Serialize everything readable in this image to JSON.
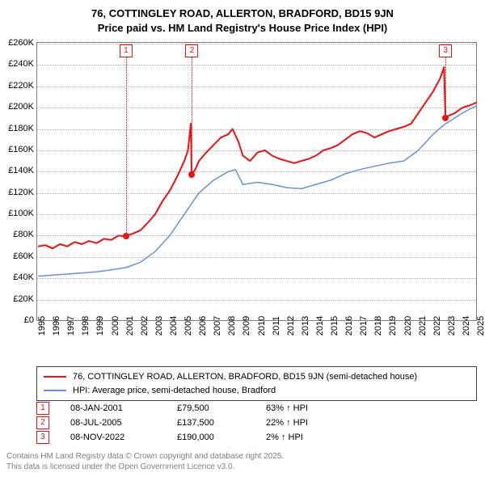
{
  "title_line1": "76, COTTINGLEY ROAD, ALLERTON, BRADFORD, BD15 9JN",
  "title_line2": "Price paid vs. HM Land Registry's House Price Index (HPI)",
  "chart": {
    "type": "line",
    "background_color": "#ffffff",
    "border_color": "#808080",
    "grid_color": "#b0b0b0",
    "font_label_size": 11,
    "x_years": [
      1995,
      1996,
      1997,
      1998,
      1999,
      2000,
      2001,
      2002,
      2003,
      2004,
      2005,
      2006,
      2007,
      2008,
      2009,
      2010,
      2011,
      2012,
      2013,
      2014,
      2015,
      2016,
      2017,
      2018,
      2019,
      2020,
      2021,
      2022,
      2023,
      2024,
      2025
    ],
    "ylim": [
      0,
      260000
    ],
    "ytick_step": 20000,
    "ytick_labels": [
      "£0",
      "£20K",
      "£40K",
      "£60K",
      "£80K",
      "£100K",
      "£120K",
      "£140K",
      "£160K",
      "£180K",
      "£200K",
      "£220K",
      "£240K",
      "£260K"
    ],
    "series": [
      {
        "name": "property",
        "label": "76, COTTINGLEY ROAD, ALLERTON, BRADFORD, BD15 9JN (semi-detached house)",
        "color": "#ef1010",
        "width": 2,
        "points": [
          [
            1995.0,
            70000
          ],
          [
            1995.5,
            71000
          ],
          [
            1996.0,
            68000
          ],
          [
            1996.5,
            72000
          ],
          [
            1997.0,
            70000
          ],
          [
            1997.5,
            74000
          ],
          [
            1998.0,
            72000
          ],
          [
            1998.5,
            75000
          ],
          [
            1999.0,
            73000
          ],
          [
            1999.5,
            77000
          ],
          [
            2000.0,
            76000
          ],
          [
            2000.5,
            80000
          ],
          [
            2001.0,
            79500
          ],
          [
            2001.5,
            82000
          ],
          [
            2002.0,
            85000
          ],
          [
            2002.5,
            92000
          ],
          [
            2003.0,
            100000
          ],
          [
            2003.5,
            112000
          ],
          [
            2004.0,
            122000
          ],
          [
            2004.5,
            135000
          ],
          [
            2005.0,
            150000
          ],
          [
            2005.25,
            160000
          ],
          [
            2005.45,
            185000
          ],
          [
            2005.5,
            137500
          ],
          [
            2005.75,
            142000
          ],
          [
            2006.0,
            150000
          ],
          [
            2006.5,
            158000
          ],
          [
            2007.0,
            165000
          ],
          [
            2007.5,
            172000
          ],
          [
            2008.0,
            175000
          ],
          [
            2008.3,
            180000
          ],
          [
            2008.7,
            168000
          ],
          [
            2009.0,
            155000
          ],
          [
            2009.5,
            150000
          ],
          [
            2010.0,
            158000
          ],
          [
            2010.5,
            160000
          ],
          [
            2011.0,
            155000
          ],
          [
            2011.5,
            152000
          ],
          [
            2012.0,
            150000
          ],
          [
            2012.5,
            148000
          ],
          [
            2013.0,
            150000
          ],
          [
            2013.5,
            152000
          ],
          [
            2014.0,
            155000
          ],
          [
            2014.5,
            160000
          ],
          [
            2015.0,
            162000
          ],
          [
            2015.5,
            165000
          ],
          [
            2016.0,
            170000
          ],
          [
            2016.5,
            175000
          ],
          [
            2017.0,
            178000
          ],
          [
            2017.5,
            176000
          ],
          [
            2018.0,
            172000
          ],
          [
            2018.5,
            175000
          ],
          [
            2019.0,
            178000
          ],
          [
            2019.5,
            180000
          ],
          [
            2020.0,
            182000
          ],
          [
            2020.5,
            185000
          ],
          [
            2021.0,
            195000
          ],
          [
            2021.5,
            205000
          ],
          [
            2022.0,
            215000
          ],
          [
            2022.5,
            228000
          ],
          [
            2022.75,
            238000
          ],
          [
            2022.85,
            190000
          ],
          [
            2023.0,
            192000
          ],
          [
            2023.5,
            195000
          ],
          [
            2024.0,
            200000
          ],
          [
            2024.5,
            202000
          ],
          [
            2025.0,
            205000
          ]
        ]
      },
      {
        "name": "hpi",
        "label": "HPI: Average price, semi-detached house, Bradford",
        "color": "#6a8fd8",
        "width": 1.5,
        "points": [
          [
            1995.0,
            42000
          ],
          [
            1996.0,
            43000
          ],
          [
            1997.0,
            44000
          ],
          [
            1998.0,
            45000
          ],
          [
            1999.0,
            46000
          ],
          [
            2000.0,
            48000
          ],
          [
            2001.0,
            50000
          ],
          [
            2002.0,
            55000
          ],
          [
            2003.0,
            65000
          ],
          [
            2004.0,
            80000
          ],
          [
            2005.0,
            100000
          ],
          [
            2005.5,
            110000
          ],
          [
            2006.0,
            120000
          ],
          [
            2007.0,
            132000
          ],
          [
            2008.0,
            140000
          ],
          [
            2008.5,
            142000
          ],
          [
            2009.0,
            128000
          ],
          [
            2010.0,
            130000
          ],
          [
            2011.0,
            128000
          ],
          [
            2012.0,
            125000
          ],
          [
            2013.0,
            124000
          ],
          [
            2014.0,
            128000
          ],
          [
            2015.0,
            132000
          ],
          [
            2016.0,
            138000
          ],
          [
            2017.0,
            142000
          ],
          [
            2018.0,
            145000
          ],
          [
            2019.0,
            148000
          ],
          [
            2020.0,
            150000
          ],
          [
            2021.0,
            160000
          ],
          [
            2022.0,
            175000
          ],
          [
            2022.85,
            185000
          ],
          [
            2023.0,
            186000
          ],
          [
            2024.0,
            195000
          ],
          [
            2025.0,
            202000
          ]
        ]
      }
    ],
    "markers": [
      {
        "n": "1",
        "x": 2001.02,
        "y": 79500
      },
      {
        "n": "2",
        "x": 2005.52,
        "y": 137500
      },
      {
        "n": "3",
        "x": 2022.86,
        "y": 190000
      }
    ],
    "marker_color": "#ef1010",
    "marker_dot_fill": "#ef1010"
  },
  "legend": {
    "border_color": "#404040"
  },
  "transactions": [
    {
      "n": "1",
      "date": "08-JAN-2001",
      "price": "£79,500",
      "diff": "63% ↑ HPI"
    },
    {
      "n": "2",
      "date": "08-JUL-2005",
      "price": "£137,500",
      "diff": "22% ↑ HPI"
    },
    {
      "n": "3",
      "date": "08-NOV-2022",
      "price": "£190,000",
      "diff": "2% ↑ HPI"
    }
  ],
  "footer": {
    "line1": "Contains HM Land Registry data © Crown copyright and database right 2025.",
    "line2": "This data is licensed under the Open Government Licence v3.0."
  }
}
